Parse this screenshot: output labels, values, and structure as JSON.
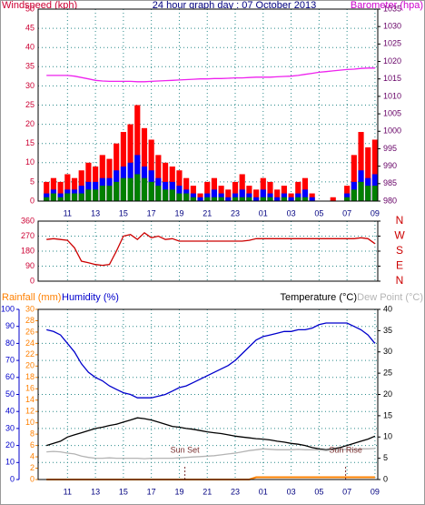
{
  "chart_data": [
    {
      "type": "bar",
      "title": "24 hour graph day : 07 October 2013",
      "y_label": "Windspeed (kph)",
      "y2_label": "Barometer (hpa)",
      "x": [
        9.5,
        10,
        10.5,
        11,
        11.5,
        12,
        12.5,
        13,
        13.5,
        14,
        14.5,
        15,
        15.5,
        16,
        16.5,
        17,
        17.5,
        18,
        18.5,
        19,
        19.5,
        20,
        20.5,
        21,
        21.5,
        22,
        22.5,
        23,
        23.5,
        24,
        24.5,
        25,
        25.5,
        26,
        26.5,
        27,
        27.5,
        28,
        28.5,
        29,
        29.5,
        30,
        30.5,
        31,
        31.5,
        32,
        32.5,
        33
      ],
      "xlim": [
        8.9,
        33.2
      ],
      "xticks": [
        11,
        13,
        15,
        17,
        19,
        21,
        23,
        {
          "value": 25,
          "label": "01"
        },
        {
          "value": 27,
          "label": "03"
        },
        {
          "value": 29,
          "label": "05"
        },
        {
          "value": 31,
          "label": "07"
        },
        {
          "value": 33,
          "label": "09"
        }
      ],
      "ylim": [
        0,
        50
      ],
      "yticks": [
        0,
        5,
        10,
        15,
        20,
        25,
        30,
        35,
        40,
        45,
        50
      ],
      "y2lim": [
        980,
        1035
      ],
      "y2ticks": [
        980,
        985,
        990,
        995,
        1000,
        1005,
        1010,
        1015,
        1020,
        1025,
        1030,
        1035
      ],
      "grid": true,
      "series": [
        {
          "type": "bar",
          "color": "#ff0000",
          "values": [
            5,
            6,
            5,
            7,
            6,
            8,
            10,
            9,
            12,
            11,
            15,
            18,
            20,
            25,
            19,
            16,
            12,
            10,
            9,
            8,
            6,
            4,
            2,
            5,
            6,
            4,
            3,
            5,
            7,
            4,
            3,
            6,
            5,
            3,
            4,
            2,
            5,
            6,
            2,
            0,
            0,
            1,
            0,
            4,
            12,
            18,
            14,
            16
          ]
        },
        {
          "type": "bar",
          "color": "#0000ff",
          "values": [
            2,
            3,
            2,
            3,
            3,
            4,
            5,
            5,
            6,
            6,
            8,
            9,
            10,
            12,
            9,
            8,
            6,
            5,
            5,
            4,
            3,
            2,
            1,
            2,
            3,
            2,
            1,
            2,
            3,
            2,
            1,
            3,
            2,
            1,
            2,
            1,
            2,
            3,
            1,
            0,
            0,
            0,
            0,
            2,
            5,
            8,
            6,
            7
          ]
        },
        {
          "type": "bar",
          "color": "#008000",
          "values": [
            1,
            2,
            1,
            2,
            2,
            2,
            3,
            3,
            4,
            4,
            5,
            6,
            6,
            7,
            6,
            5,
            4,
            3,
            3,
            2,
            2,
            1,
            0,
            1,
            1,
            1,
            0,
            1,
            1,
            1,
            0,
            1,
            1,
            0,
            1,
            0,
            1,
            1,
            0,
            0,
            0,
            0,
            0,
            1,
            3,
            5,
            4,
            4
          ]
        },
        {
          "type": "line",
          "axis": "y2",
          "color": "#ee22ee",
          "values": [
            1016,
            1016,
            1016,
            1016,
            1015.8,
            1015.4,
            1015,
            1014.6,
            1014.4,
            1014.3,
            1014.3,
            1014.3,
            1014.3,
            1014.2,
            1014.2,
            1014.3,
            1014.4,
            1014.5,
            1014.6,
            1014.7,
            1014.8,
            1014.9,
            1015,
            1015,
            1015.1,
            1015.1,
            1015.2,
            1015.3,
            1015.3,
            1015.4,
            1015.5,
            1015.5,
            1015.5,
            1015.6,
            1015.7,
            1015.8,
            1016,
            1016.3,
            1016.6,
            1016.9,
            1017.1,
            1017.3,
            1017.5,
            1017.7,
            1017.8,
            1018,
            1018.1,
            1018.1
          ]
        }
      ]
    },
    {
      "type": "line",
      "x": [
        9.5,
        10,
        10.5,
        11,
        11.5,
        12,
        12.5,
        13,
        13.5,
        14,
        14.5,
        15,
        15.5,
        16,
        16.5,
        17,
        17.5,
        18,
        18.5,
        19,
        19.5,
        20,
        20.5,
        21,
        21.5,
        22,
        22.5,
        23,
        23.5,
        24,
        24.5,
        25,
        25.5,
        26,
        26.5,
        27,
        27.5,
        28,
        28.5,
        29,
        29.5,
        30,
        30.5,
        31,
        31.5,
        32,
        32.5,
        33
      ],
      "xlim": [
        8.9,
        33.2
      ],
      "ylim": [
        0,
        360
      ],
      "yticks": [
        0,
        90,
        180,
        270,
        360
      ],
      "y2lim": [
        0,
        360
      ],
      "y2ticks": [
        {
          "value": 0,
          "label": "N"
        },
        {
          "value": 90,
          "label": "E"
        },
        {
          "value": 180,
          "label": "S"
        },
        {
          "value": 270,
          "label": "W"
        },
        {
          "value": 360,
          "label": "N"
        }
      ],
      "grid": true,
      "series": [
        {
          "color": "#cc0000",
          "values": [
            250,
            255,
            250,
            245,
            200,
            120,
            110,
            100,
            95,
            100,
            180,
            270,
            280,
            250,
            290,
            260,
            270,
            250,
            255,
            240,
            240,
            240,
            240,
            240,
            240,
            240,
            240,
            240,
            240,
            245,
            255,
            255,
            255,
            255,
            255,
            255,
            255,
            255,
            255,
            255,
            255,
            255,
            255,
            255,
            255,
            260,
            255,
            225
          ]
        }
      ]
    },
    {
      "type": "line",
      "y_label": "Rainfall (mm)",
      "y3_label": "Humidity (%)",
      "y2_label": "Temperature (°C)",
      "y4_label": "Dew Point (°C)",
      "x": [
        9.5,
        10,
        10.5,
        11,
        11.5,
        12,
        12.5,
        13,
        13.5,
        14,
        14.5,
        15,
        15.5,
        16,
        16.5,
        17,
        17.5,
        18,
        18.5,
        19,
        19.5,
        20,
        20.5,
        21,
        21.5,
        22,
        22.5,
        23,
        23.5,
        24,
        24.5,
        25,
        25.5,
        26,
        26.5,
        27,
        27.5,
        28,
        28.5,
        29,
        29.5,
        30,
        30.5,
        31,
        31.5,
        32,
        32.5,
        33
      ],
      "xlim": [
        8.9,
        33.2
      ],
      "xticks": [
        11,
        13,
        15,
        17,
        19,
        21,
        23,
        {
          "value": 25,
          "label": "01"
        },
        {
          "value": 27,
          "label": "03"
        },
        {
          "value": 29,
          "label": "05"
        },
        {
          "value": 31,
          "label": "07"
        },
        {
          "value": 33,
          "label": "09"
        }
      ],
      "ylim": [
        0,
        30
      ],
      "yticks": [
        0,
        2,
        4,
        6,
        8,
        10,
        12,
        14,
        16,
        18,
        20,
        22,
        24,
        26,
        28,
        30
      ],
      "y3lim": [
        0,
        100
      ],
      "y3ticks": [
        0,
        10,
        20,
        30,
        40,
        50,
        60,
        70,
        80,
        90,
        100
      ],
      "y2lim": [
        0,
        40
      ],
      "y2ticks": [
        0,
        5,
        10,
        15,
        20,
        25,
        30,
        35,
        40
      ],
      "grid": true,
      "annotations": [
        {
          "text": "Sun Set",
          "x": 19.4
        },
        {
          "text": "Sun Rise",
          "x": 30.9
        }
      ],
      "series": [
        {
          "axis": "y3",
          "color": "#0000cc",
          "values": [
            88,
            87,
            85,
            80,
            75,
            68,
            63,
            60,
            58,
            55,
            53,
            51,
            50,
            48,
            48,
            48,
            49,
            50,
            52,
            54,
            55,
            57,
            59,
            61,
            63,
            65,
            67,
            70,
            74,
            78,
            82,
            84,
            85,
            86,
            87,
            87,
            88,
            88,
            89,
            91,
            92,
            92,
            92,
            92,
            90,
            88,
            85,
            80
          ]
        },
        {
          "axis": "y2",
          "color": "#000000",
          "values": [
            8,
            8.5,
            9,
            10,
            10.5,
            11,
            11.5,
            12,
            12.3,
            12.7,
            13,
            13.5,
            14,
            14.5,
            14.3,
            14,
            13.5,
            13,
            12.5,
            12.3,
            12,
            11.8,
            11.5,
            11.2,
            11,
            10.8,
            10.5,
            10.2,
            10,
            9.8,
            9.6,
            9.5,
            9.3,
            9,
            8.8,
            8.5,
            8.3,
            8,
            7.5,
            7.2,
            7,
            7.2,
            7.5,
            8,
            8.5,
            9,
            9.5,
            10.2
          ]
        },
        {
          "axis": "y2",
          "color": "#b4b4b4",
          "values": [
            6.5,
            6.6,
            6.5,
            6.2,
            6,
            5.5,
            5.2,
            5,
            5,
            5.1,
            5,
            5,
            5,
            5,
            4.9,
            5,
            5,
            5,
            5,
            5.1,
            5.2,
            5.3,
            5.4,
            5.5,
            5.6,
            5.8,
            6,
            6.2,
            6.5,
            6.8,
            7,
            7.2,
            7.1,
            7,
            7,
            7,
            7.1,
            7,
            7,
            7,
            6.8,
            7,
            7,
            7.1,
            7,
            7.2,
            7.2,
            7.3
          ]
        },
        {
          "axis": "y",
          "color": "#ff8000",
          "values": [
            0,
            0,
            0,
            0,
            0,
            0,
            0,
            0,
            0,
            0,
            0,
            0,
            0,
            0,
            0,
            0,
            0,
            0,
            0,
            0,
            0,
            0,
            0,
            0,
            0,
            0,
            0,
            0,
            0,
            0,
            0.4,
            0.4,
            0.4,
            0.4,
            0.4,
            0.4,
            0.4,
            0.4,
            0.4,
            0.4,
            0.4,
            0.4,
            0.4,
            0.4,
            0.4,
            0.4,
            0.4,
            0.4
          ]
        }
      ]
    }
  ]
}
